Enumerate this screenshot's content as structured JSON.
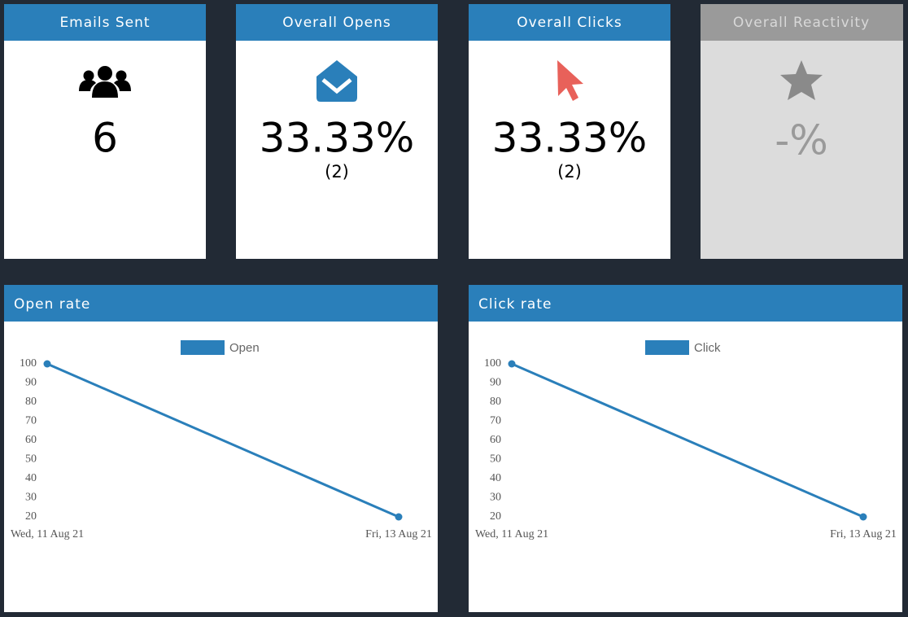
{
  "cards": [
    {
      "title": "Emails Sent",
      "value": "6"
    },
    {
      "title": "Overall Opens",
      "value": "33.33%",
      "count": "(2)"
    },
    {
      "title": "Overall Clicks",
      "value": "33.33%",
      "count": "(2)"
    },
    {
      "title": "Overall Reactivity",
      "value": "-%"
    }
  ],
  "chart_data": [
    {
      "type": "line",
      "title": "Open rate",
      "x": [
        "Wed, 11 Aug 21",
        "Fri, 13 Aug 21"
      ],
      "series": [
        {
          "name": "Open",
          "color": "#2a7fba",
          "values": [
            100,
            20
          ]
        }
      ],
      "ylim": [
        20,
        100
      ],
      "yticks": [
        20,
        30,
        40,
        50,
        60,
        70,
        80,
        90,
        100
      ]
    },
    {
      "type": "line",
      "title": "Click rate",
      "x": [
        "Wed, 11 Aug 21",
        "Fri, 13 Aug 21"
      ],
      "series": [
        {
          "name": "Click",
          "color": "#2a7fba",
          "values": [
            100,
            20
          ]
        }
      ],
      "ylim": [
        20,
        100
      ],
      "yticks": [
        20,
        30,
        40,
        50,
        60,
        70,
        80,
        90,
        100
      ]
    }
  ]
}
